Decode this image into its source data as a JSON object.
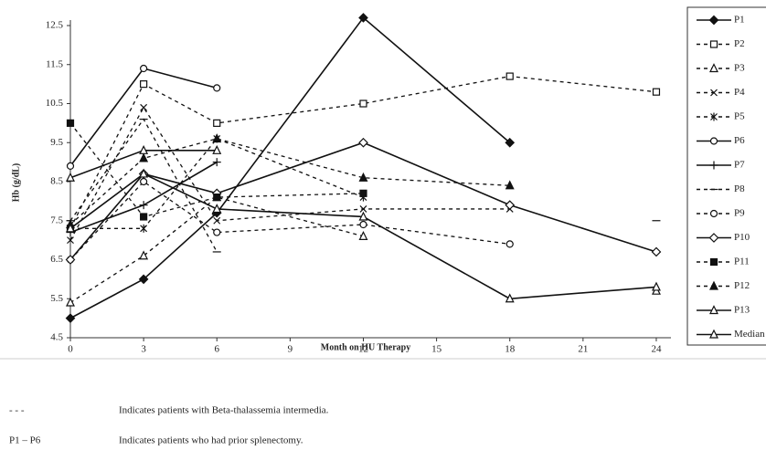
{
  "chart_data": {
    "type": "line",
    "x_label": "Month on HU Therapy",
    "y_label": "Hb (g/dL)",
    "x": [
      0,
      3,
      6,
      12,
      18,
      24
    ],
    "xlim": [
      0,
      24.6
    ],
    "xticks": [
      0,
      3,
      6,
      9,
      12,
      15,
      18,
      21,
      24
    ],
    "ylim": [
      4.5,
      12.5
    ],
    "yticks": [
      4.5,
      5.5,
      6.5,
      7.5,
      8.5,
      9.5,
      10.5,
      11.5,
      12.5
    ],
    "grid": false,
    "legend": "right",
    "series": [
      {
        "name": "P1",
        "color": "#111",
        "dash": false,
        "marker": "diamond-filled",
        "values": [
          5.0,
          6.0,
          7.7,
          12.7,
          9.5,
          null
        ]
      },
      {
        "name": "P2",
        "color": "#111",
        "dash": true,
        "marker": "square-open",
        "values": [
          7.3,
          11.0,
          10.0,
          10.5,
          11.2,
          10.8
        ]
      },
      {
        "name": "P3",
        "color": "#111",
        "dash": true,
        "marker": "triangle-open",
        "values": [
          5.4,
          6.6,
          8.1,
          7.1,
          null,
          5.7
        ]
      },
      {
        "name": "P4",
        "color": "#111",
        "dash": true,
        "marker": "x",
        "values": [
          7.0,
          10.4,
          7.5,
          7.8,
          7.8,
          null
        ]
      },
      {
        "name": "P5",
        "color": "#111",
        "dash": true,
        "marker": "star",
        "values": [
          7.3,
          7.3,
          9.6,
          8.1,
          null,
          null
        ]
      },
      {
        "name": "P6",
        "color": "#111",
        "dash": false,
        "marker": "circle-open",
        "values": [
          8.9,
          11.4,
          10.9,
          null,
          null,
          null
        ]
      },
      {
        "name": "P7",
        "color": "#111",
        "dash": false,
        "marker": "plus",
        "values": [
          7.2,
          7.9,
          9.0,
          null,
          null,
          null
        ]
      },
      {
        "name": "P8",
        "color": "#111",
        "dash": true,
        "marker": "dash",
        "values": [
          7.5,
          10.1,
          6.7,
          null,
          null,
          7.5
        ]
      },
      {
        "name": "P9",
        "color": "#111",
        "dash": true,
        "marker": "circle-open",
        "values": [
          6.5,
          8.5,
          7.2,
          7.4,
          6.9,
          null
        ]
      },
      {
        "name": "P10",
        "color": "#111",
        "dash": false,
        "marker": "diamond-open",
        "values": [
          6.5,
          8.7,
          8.2,
          9.5,
          7.9,
          6.7
        ]
      },
      {
        "name": "P11",
        "color": "#111",
        "dash": true,
        "marker": "square-filled",
        "values": [
          10.0,
          7.6,
          8.1,
          8.2,
          null,
          null
        ]
      },
      {
        "name": "P12",
        "color": "#111",
        "dash": true,
        "marker": "triangle-filled",
        "values": [
          7.4,
          9.1,
          9.6,
          8.6,
          8.4,
          null
        ]
      },
      {
        "name": "P13",
        "color": "#111",
        "dash": false,
        "marker": "triangle-open",
        "values": [
          8.6,
          9.3,
          9.3,
          null,
          null,
          null
        ]
      },
      {
        "name": "Median",
        "color": "#111",
        "dash": false,
        "marker": "triangle-open",
        "values": [
          7.3,
          8.7,
          7.8,
          7.6,
          5.5,
          5.8
        ]
      }
    ],
    "notes": [
      {
        "symbol": "- - -",
        "text": "Indicates patients with Beta-thalassemia intermedia."
      },
      {
        "symbol": "P1 – P6",
        "text": "Indicates patients who had prior splenectomy."
      }
    ]
  }
}
